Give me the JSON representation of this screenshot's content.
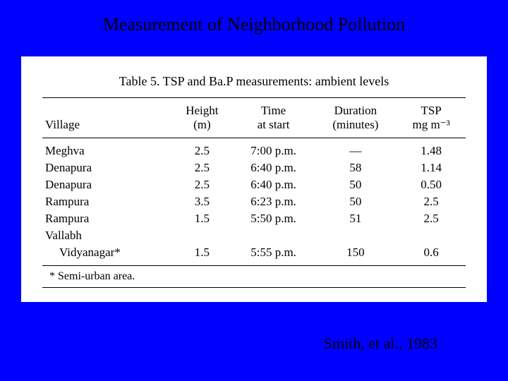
{
  "slide": {
    "title": "Measurement of Neighborhood Pollution",
    "citation": "Smith, et al., 1983",
    "background_color": "#0000ff"
  },
  "table": {
    "caption": "Table 5. TSP and Ba.P measurements: ambient levels",
    "background_color": "#ffffff",
    "text_color": "#000000",
    "border_color": "#000000",
    "columns": [
      {
        "label_line1": "Village",
        "label_line2": "",
        "align": "left"
      },
      {
        "label_line1": "Height",
        "label_line2": "(m)",
        "align": "center"
      },
      {
        "label_line1": "Time",
        "label_line2": "at start",
        "align": "center"
      },
      {
        "label_line1": "Duration",
        "label_line2": "(minutes)",
        "align": "center"
      },
      {
        "label_line1": "TSP",
        "label_line2": "mg m⁻³",
        "align": "center"
      }
    ],
    "rows": [
      {
        "village": "Meghva",
        "height": "2.5",
        "time": "7:00 p.m.",
        "duration": "—",
        "tsp": "1.48",
        "indent": false
      },
      {
        "village": "Denapura",
        "height": "2.5",
        "time": "6:40 p.m.",
        "duration": "58",
        "tsp": "1.14",
        "indent": false
      },
      {
        "village": "Denapura",
        "height": "2.5",
        "time": "6:40 p.m.",
        "duration": "50",
        "tsp": "0.50",
        "indent": false
      },
      {
        "village": "Rampura",
        "height": "3.5",
        "time": "6:23 p.m.",
        "duration": "50",
        "tsp": "2.5",
        "indent": false
      },
      {
        "village": "Rampura",
        "height": "1.5",
        "time": "5:50 p.m.",
        "duration": "51",
        "tsp": "2.5",
        "indent": false
      },
      {
        "village": "Vallabh",
        "height": "",
        "time": "",
        "duration": "",
        "tsp": "",
        "indent": false
      },
      {
        "village": "Vidyanagar*",
        "height": "1.5",
        "time": "5:55 p.m.",
        "duration": "150",
        "tsp": "0.6",
        "indent": true
      }
    ],
    "footnote": "* Semi-urban area."
  }
}
